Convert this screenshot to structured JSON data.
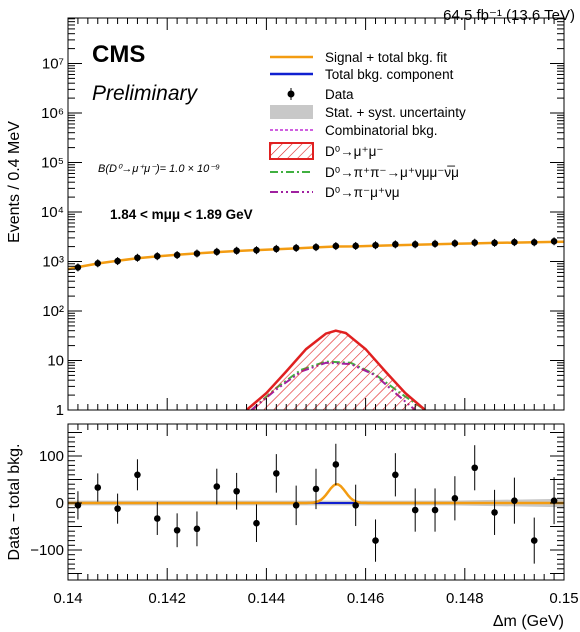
{
  "header": {
    "lumi_text": "64.5 fb⁻¹ (13.6 TeV)",
    "experiment": "CMS",
    "status": "Preliminary"
  },
  "annotations": {
    "branching_fraction": "B(D⁰→μ⁺μ⁻)= 1.0 × 10⁻⁹",
    "mass_window": "1.84 < mμμ < 1.89 GeV"
  },
  "legend": [
    {
      "label": "Signal + total bkg. fit",
      "color": "#f39c12",
      "style": "line"
    },
    {
      "label": "Total bkg. component",
      "color": "#1020d0",
      "style": "line"
    },
    {
      "label": "Data",
      "color": "#000000",
      "style": "marker"
    },
    {
      "label": "Stat. + syst. uncertainty",
      "color": "#c8c8c8",
      "style": "band"
    },
    {
      "label": "Combinatorial bkg.",
      "color": "#d060e0",
      "style": "dashed"
    },
    {
      "label": "D⁰→μ⁺μ⁻",
      "color": "#e02020",
      "style": "hatched"
    },
    {
      "label": "D⁰→π⁺π⁻→μ⁺νμμ⁻ν̅μ",
      "color": "#40b040",
      "style": "dashdot"
    },
    {
      "label": "D⁰→π⁻μ⁺νμ",
      "color": "#a020a0",
      "style": "dashdotdot"
    }
  ],
  "chart_data": [
    {
      "type": "line",
      "panel": "top",
      "xlabel": "",
      "ylabel": "Events / 0.4 MeV",
      "xlim": [
        0.14,
        0.15
      ],
      "ylim": [
        1,
        30000000
      ],
      "yscale": "log",
      "y_ticks": [
        "1",
        "10",
        "10²",
        "10³",
        "10⁴",
        "10⁵",
        "10⁶",
        "10⁷"
      ],
      "x": [
        0.1402,
        0.1406,
        0.141,
        0.1414,
        0.1418,
        0.1422,
        0.1426,
        0.143,
        0.1434,
        0.1438,
        0.1442,
        0.1446,
        0.145,
        0.1454,
        0.1458,
        0.1462,
        0.1466,
        0.147,
        0.1474,
        0.1478,
        0.1482,
        0.1486,
        0.149,
        0.1494,
        0.1498
      ],
      "series": [
        {
          "name": "Data",
          "values": [
            760,
            920,
            1020,
            1190,
            1280,
            1350,
            1450,
            1570,
            1650,
            1690,
            1800,
            1880,
            1950,
            2050,
            2060,
            2130,
            2220,
            2220,
            2280,
            2330,
            2400,
            2380,
            2460,
            2440,
            2560
          ]
        },
        {
          "name": "Signal + total bkg. fit",
          "values": [
            770,
            910,
            1040,
            1160,
            1270,
            1370,
            1460,
            1550,
            1630,
            1700,
            1770,
            1840,
            1930,
            2010,
            2020,
            2080,
            2130,
            2180,
            2230,
            2280,
            2320,
            2370,
            2410,
            2450,
            2490
          ]
        },
        {
          "name": "D⁰→μ⁺μ⁻",
          "x": [
            0.1436,
            0.144,
            0.1444,
            0.1448,
            0.1452,
            0.1454,
            0.1456,
            0.146,
            0.1464,
            0.1468,
            0.1472
          ],
          "values": [
            1,
            2.2,
            6,
            17,
            35,
            40,
            36,
            17,
            6,
            2.2,
            1
          ]
        },
        {
          "name": "D⁰→π⁺π⁻→μ⁺νμμ⁻ν̅μ",
          "x": [
            0.1437,
            0.1442,
            0.1447,
            0.1452,
            0.1457,
            0.1462,
            0.1467,
            0.1472
          ],
          "values": [
            1,
            2.8,
            6.5,
            9.5,
            9,
            5.2,
            2.2,
            1
          ]
        },
        {
          "name": "D⁰→π⁻μ⁺νμ",
          "x": [
            0.1437,
            0.1442,
            0.1447,
            0.1452,
            0.1457,
            0.1462,
            0.1466,
            0.147
          ],
          "values": [
            1,
            2.6,
            6,
            9,
            8.5,
            5,
            2.2,
            1
          ]
        }
      ]
    },
    {
      "type": "line",
      "panel": "bottom",
      "xlabel": "Δm (GeV)",
      "ylabel": "Data − total bkg.",
      "xlim": [
        0.14,
        0.15
      ],
      "ylim": [
        -160,
        160
      ],
      "x_ticks": [
        "0.14",
        "0.142",
        "0.144",
        "0.146",
        "0.148",
        "0.15"
      ],
      "y_ticks": [
        "−100",
        "0",
        "100"
      ],
      "x": [
        0.1402,
        0.1406,
        0.141,
        0.1414,
        0.1418,
        0.1422,
        0.1426,
        0.143,
        0.1434,
        0.1438,
        0.1442,
        0.1446,
        0.145,
        0.1454,
        0.1458,
        0.1462,
        0.1466,
        0.147,
        0.1474,
        0.1478,
        0.1482,
        0.1486,
        0.149,
        0.1494,
        0.1498
      ],
      "series": [
        {
          "name": "Data",
          "values": [
            -5,
            33,
            -12,
            60,
            -33,
            -58,
            -55,
            35,
            25,
            -43,
            63,
            -5,
            30,
            82,
            -5,
            -80,
            60,
            -15,
            -15,
            10,
            75,
            -20,
            5,
            -80,
            5
          ],
          "errors": [
            30,
            30,
            32,
            33,
            35,
            36,
            37,
            38,
            39,
            40,
            41,
            42,
            43,
            44,
            44,
            45,
            46,
            46,
            46,
            47,
            48,
            48,
            49,
            49,
            50
          ]
        },
        {
          "name": "Signal + total bkg. fit",
          "peak_x": 0.14542,
          "peak_value": 40,
          "width": 0.00017
        },
        {
          "name": "Stat. + syst. uncertainty",
          "half_width": 5
        }
      ]
    }
  ]
}
